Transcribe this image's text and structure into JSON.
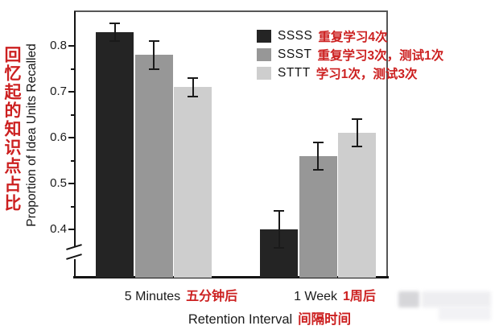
{
  "figure": {
    "y_axis": {
      "label_en": "Proportion of Idea Units Recalled",
      "label_zh": "回忆起的知识点占比",
      "majors": [
        0.8,
        0.7,
        0.6,
        0.5,
        0.4
      ],
      "minors": [
        0.75,
        0.65,
        0.55,
        0.45
      ]
    },
    "x_axis": {
      "title_en": "Retention Interval",
      "title_zh": "间隔时间",
      "groups": [
        {
          "en": "5 Minutes",
          "zh": "五分钟后"
        },
        {
          "en": "1 Week",
          "zh": "1周后"
        }
      ]
    },
    "legend": {
      "items": [
        {
          "key": "SSSS",
          "desc_zh": "重复学习4次",
          "color": "#242424"
        },
        {
          "key": "SSST",
          "desc_zh": "重复学习3次，测试1次",
          "color": "#979797"
        },
        {
          "key": "STTT",
          "desc_zh": "学习1次，测试3次",
          "color": "#cecece"
        }
      ]
    }
  },
  "chart_data": {
    "type": "bar",
    "categories": [
      "5 Minutes",
      "1 Week"
    ],
    "series": [
      {
        "name": "SSSS",
        "values": [
          0.83,
          0.4
        ],
        "errors": [
          0.02,
          0.04
        ],
        "color": "#242424"
      },
      {
        "name": "SSST",
        "values": [
          0.78,
          0.56
        ],
        "errors": [
          0.03,
          0.03
        ],
        "color": "#979797"
      },
      {
        "name": "STTT",
        "values": [
          0.71,
          0.61
        ],
        "errors": [
          0.02,
          0.03
        ],
        "color": "#cecece"
      }
    ],
    "title": "",
    "xlabel": "Retention Interval",
    "ylabel": "Proportion of Idea Units Recalled",
    "ylim": [
      0.4,
      0.8
    ],
    "axis_break_below": 0.4,
    "grid": false,
    "legend_position": "top-right",
    "error_bars": true
  },
  "colors": {
    "accent_red": "#cc2020",
    "axis": "#141414",
    "frame": "#565656"
  }
}
